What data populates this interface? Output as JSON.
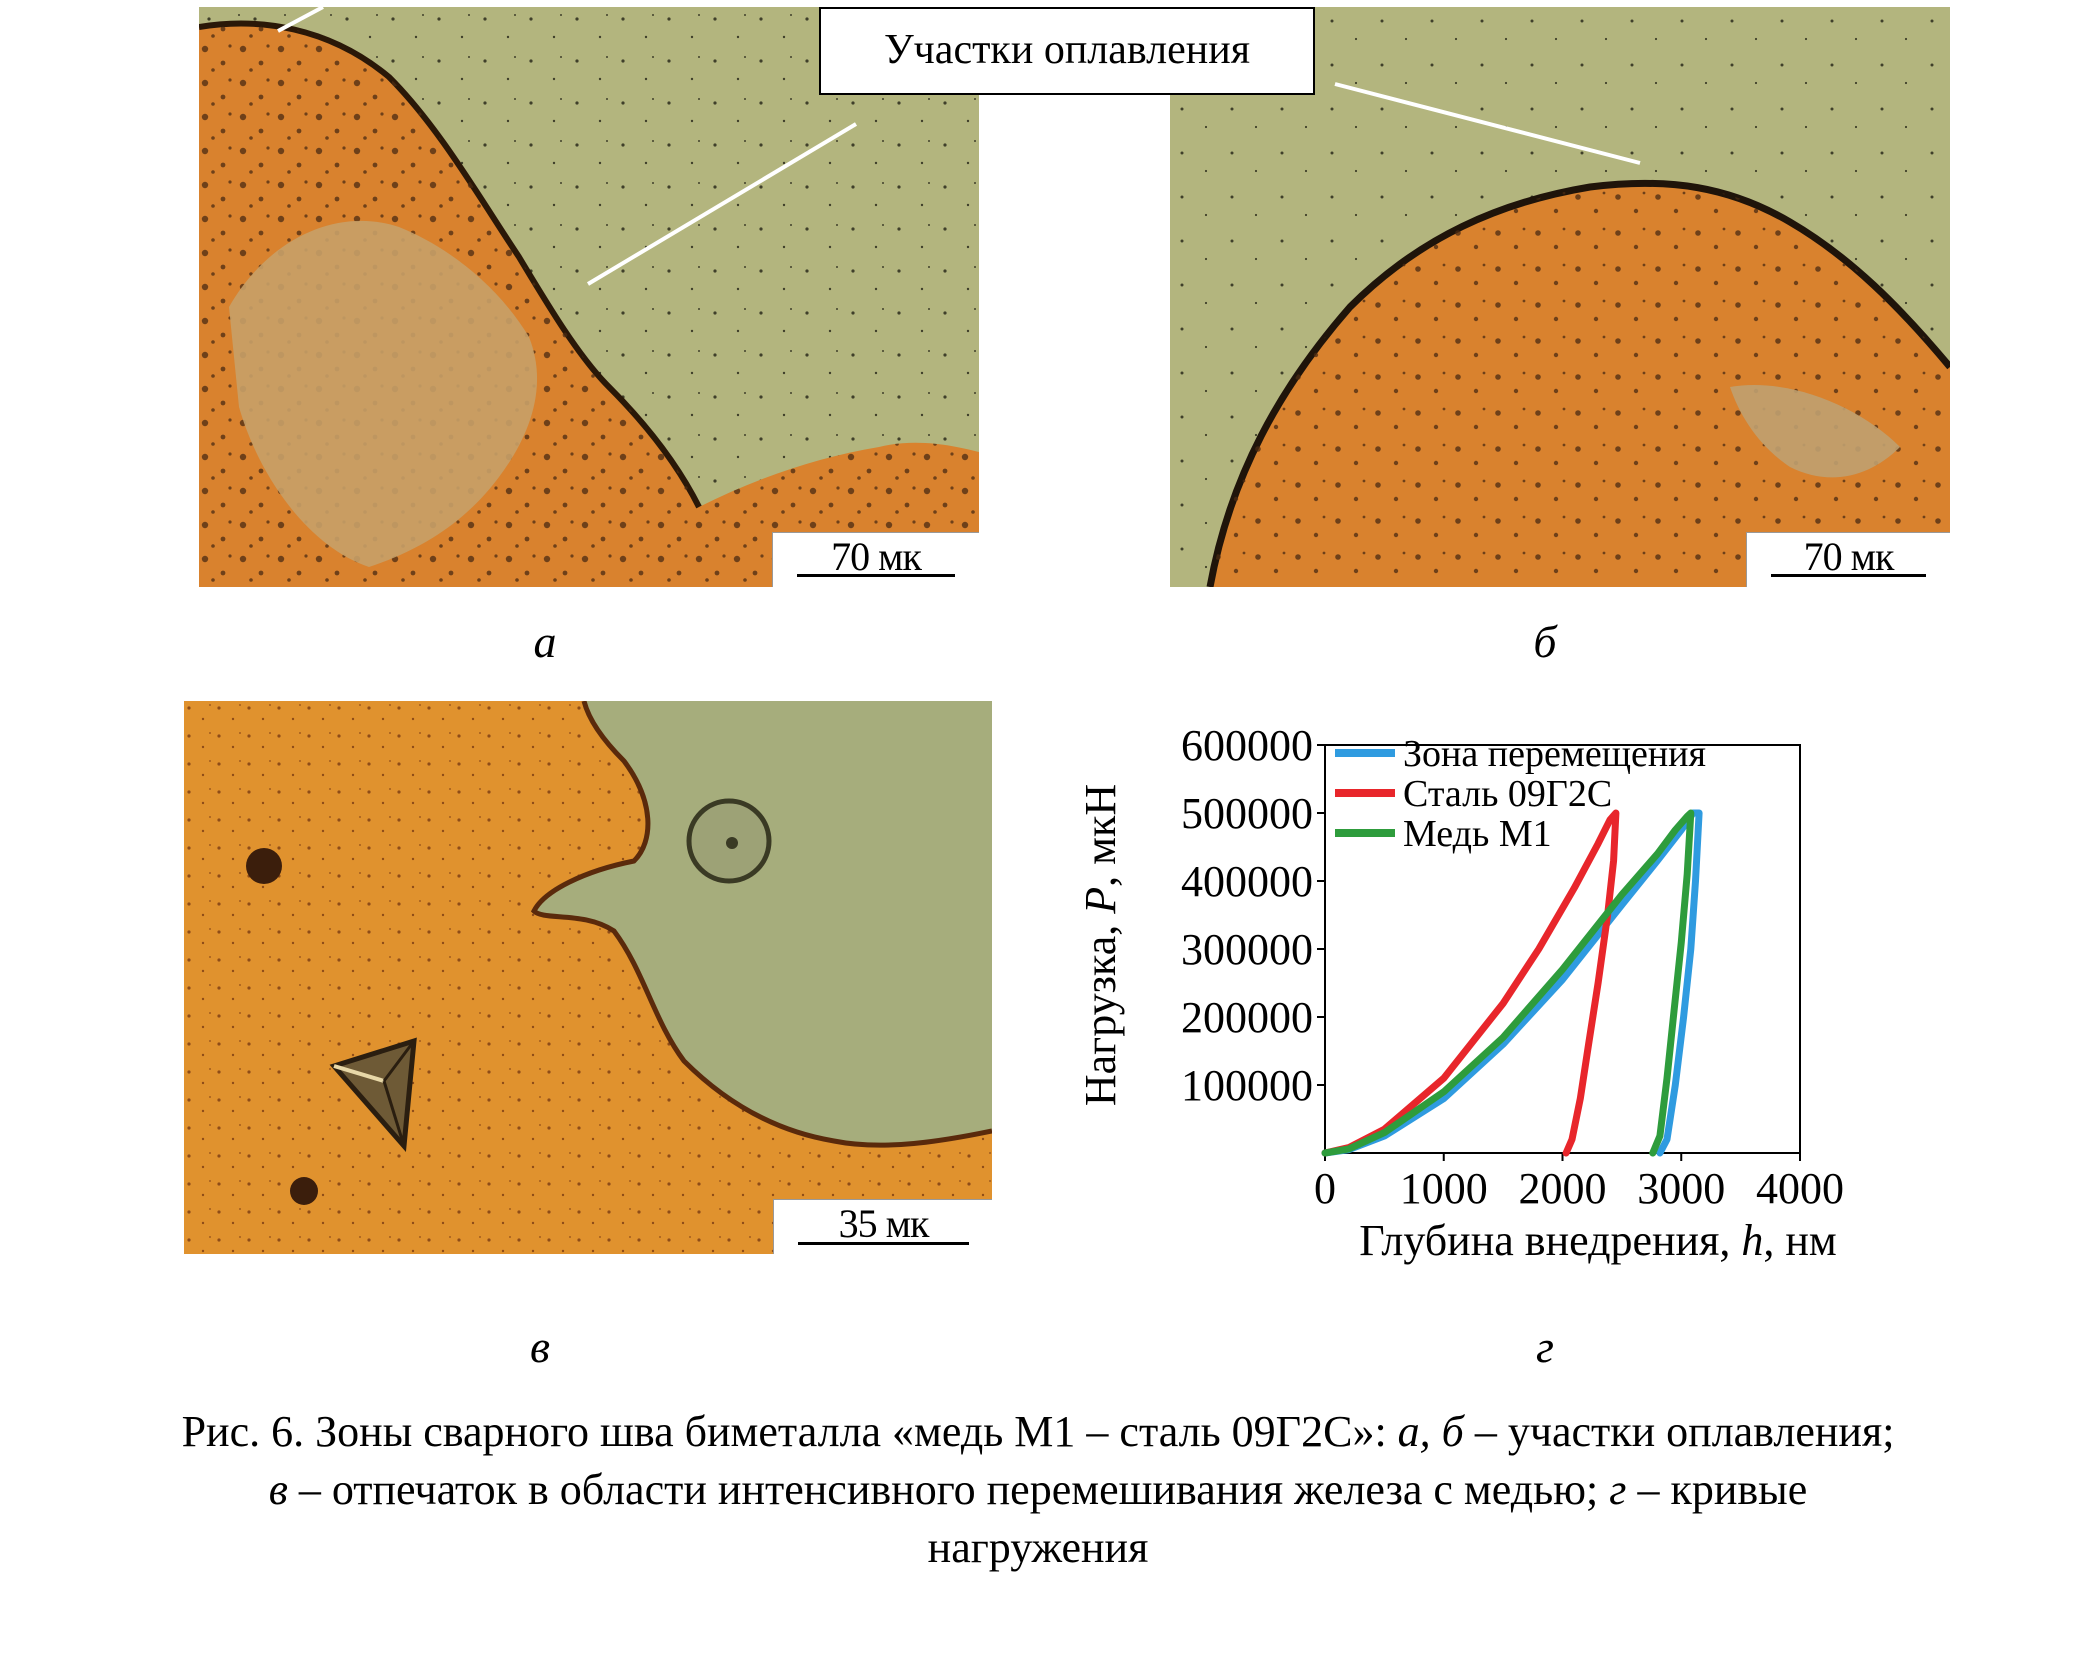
{
  "figure": {
    "callout_label": "Участки оплавления",
    "scale_a": "70 мк",
    "scale_b": "70 мк",
    "scale_v": "35 мк",
    "sublabel_a": "а",
    "sublabel_b": "б",
    "sublabel_v": "в",
    "sublabel_g": "г"
  },
  "caption": {
    "line1_prefix": "Рис. 6. Зоны сварного шва биметалла «медь М1 – сталь 09Г2С»: ",
    "line1_it_a": "а,",
    "line1_it_b": "б",
    "line1_suffix": " – участки оплавления;",
    "line2_it_v": "в",
    "line2_text": " – отпечаток в области интенсивного перемешивания железа с медью; ",
    "line2_it_g": "г",
    "line2_suffix": " – кривые",
    "line3": "нагружения"
  },
  "colors": {
    "copper": "#d9822e",
    "steel": "#b3b57e",
    "series_blue": "#2f9be0",
    "series_red": "#e8262b",
    "series_green": "#2e9c3c"
  },
  "chart_data": {
    "type": "line",
    "ylabel_prefix": "Нагрузка, ",
    "ylabel_var": "P",
    "ylabel_unit": ", мкН",
    "xlabel_prefix": "Глубина внедрения, ",
    "xlabel_var": "h",
    "xlabel_unit": ", нм",
    "xlim": [
      0,
      4000
    ],
    "ylim": [
      0,
      600000
    ],
    "xticks": [
      "0",
      "1000",
      "2000",
      "3000",
      "4000"
    ],
    "yticks": [
      "100000",
      "200000",
      "300000",
      "400000",
      "500000",
      "600000"
    ],
    "legend_position": "top-left",
    "series": [
      {
        "name": "Зона перемещения",
        "color": "#2f9be0",
        "x": [
          0,
          200,
          500,
          1000,
          1500,
          2000,
          2500,
          2800,
          3000,
          3100,
          3150,
          3120,
          3080,
          3020,
          2950,
          2880,
          2820
        ],
        "y": [
          0,
          5000,
          25000,
          80000,
          160000,
          255000,
          365000,
          430000,
          475000,
          500000,
          500000,
          400000,
          300000,
          200000,
          100000,
          20000,
          0
        ]
      },
      {
        "name": "Сталь 09Г2С",
        "color": "#e8262b",
        "x": [
          0,
          200,
          500,
          1000,
          1500,
          1800,
          2100,
          2300,
          2400,
          2450,
          2430,
          2380,
          2300,
          2220,
          2150,
          2080,
          2030
        ],
        "y": [
          0,
          8000,
          35000,
          110000,
          220000,
          300000,
          390000,
          455000,
          490000,
          500000,
          430000,
          350000,
          250000,
          160000,
          80000,
          20000,
          0
        ]
      },
      {
        "name": "Медь М1",
        "color": "#2e9c3c",
        "x": [
          0,
          200,
          500,
          1000,
          1500,
          2000,
          2500,
          2800,
          2950,
          3050,
          3080,
          3050,
          3000,
          2940,
          2880,
          2820,
          2760
        ],
        "y": [
          0,
          6000,
          30000,
          90000,
          170000,
          270000,
          380000,
          440000,
          475000,
          495000,
          500000,
          410000,
          310000,
          210000,
          110000,
          25000,
          0
        ]
      }
    ]
  }
}
